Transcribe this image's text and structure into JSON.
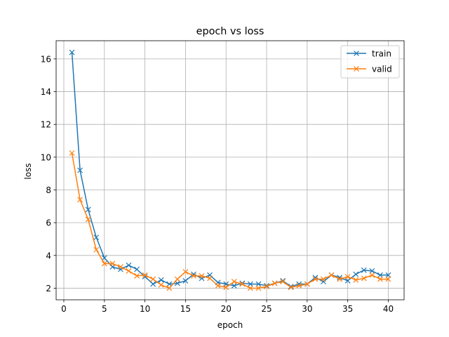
{
  "chart_data": {
    "type": "line",
    "title": "epoch vs loss",
    "xlabel": "epoch",
    "ylabel": "loss",
    "xlim": [
      -0.95,
      41.95
    ],
    "ylim": [
      1.29,
      17.11
    ],
    "xticks": [
      0,
      5,
      10,
      15,
      20,
      25,
      30,
      35,
      40
    ],
    "yticks": [
      2,
      4,
      6,
      8,
      10,
      12,
      14,
      16
    ],
    "grid": true,
    "legend_position": "top-right",
    "x": [
      1,
      2,
      3,
      4,
      5,
      6,
      7,
      8,
      9,
      10,
      11,
      12,
      13,
      14,
      15,
      16,
      17,
      18,
      19,
      20,
      21,
      22,
      23,
      24,
      25,
      26,
      27,
      28,
      29,
      30,
      31,
      32,
      33,
      34,
      35,
      36,
      37,
      38,
      39,
      40
    ],
    "series": [
      {
        "name": "train",
        "color": "#1f77b4",
        "marker": "x",
        "values": [
          16.4,
          9.2,
          6.8,
          5.1,
          3.85,
          3.3,
          3.15,
          3.4,
          3.15,
          2.7,
          2.25,
          2.5,
          2.25,
          2.3,
          2.45,
          2.85,
          2.6,
          2.8,
          2.35,
          2.25,
          2.15,
          2.3,
          2.25,
          2.25,
          2.15,
          2.3,
          2.45,
          2.1,
          2.25,
          2.25,
          2.65,
          2.4,
          2.8,
          2.65,
          2.45,
          2.85,
          3.1,
          3.05,
          2.8,
          2.8
        ]
      },
      {
        "name": "valid",
        "color": "#ff7f0e",
        "marker": "x",
        "values": [
          10.25,
          7.4,
          6.2,
          4.35,
          3.5,
          3.5,
          3.3,
          3.05,
          2.75,
          2.8,
          2.55,
          2.2,
          2.0,
          2.55,
          3.0,
          2.75,
          2.75,
          2.6,
          2.15,
          2.05,
          2.4,
          2.25,
          2.0,
          2.0,
          2.1,
          2.3,
          2.4,
          2.05,
          2.15,
          2.25,
          2.55,
          2.55,
          2.8,
          2.55,
          2.7,
          2.5,
          2.6,
          2.8,
          2.55,
          2.55
        ]
      }
    ]
  }
}
